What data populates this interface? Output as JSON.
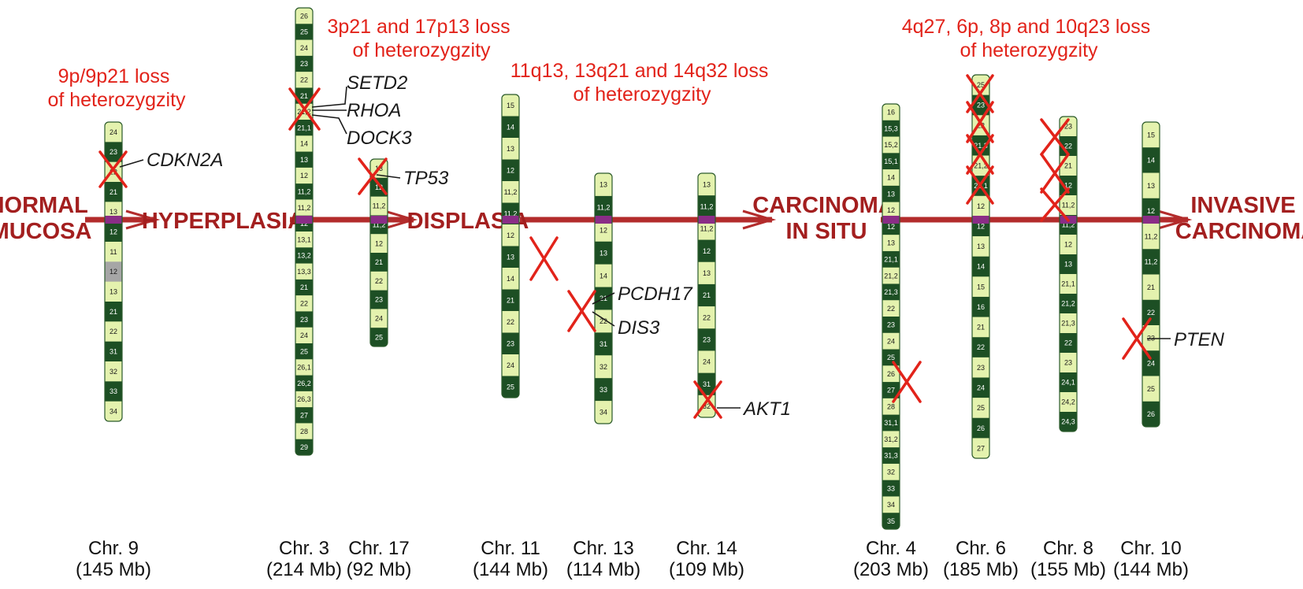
{
  "colors": {
    "light": "#e4f2ae",
    "dark": "#1d4f24",
    "grey": "#a6a6a6",
    "centromere": "#8a2d86",
    "arrow": "#b32c2c",
    "stage_text": "#a31f1f",
    "loss_text": "#e2231a",
    "cross": "#e2231a"
  },
  "stages": [
    {
      "id": "normal",
      "lines": [
        "NORMAL",
        "MUCOSA"
      ]
    },
    {
      "id": "hyperplasia",
      "lines": [
        "HYPERPLASIA"
      ]
    },
    {
      "id": "displasia",
      "lines": [
        "DISPLASIA"
      ]
    },
    {
      "id": "cis",
      "lines": [
        "CARCINOMA",
        "IN SITU"
      ]
    },
    {
      "id": "invasive",
      "lines": [
        "INVASIVE",
        "CARCINOMA"
      ]
    }
  ],
  "loss_labels": [
    {
      "id": "loss-9p",
      "lines": [
        "9p/9p21 loss",
        "of heterozygzity"
      ]
    },
    {
      "id": "loss-3p-17p",
      "lines": [
        "3p21 and 17p13 loss",
        "of heterozygzity"
      ]
    },
    {
      "id": "loss-11q-13q-14q",
      "lines": [
        "11q13, 13q21 and 14q32 loss",
        "of heterozygzity"
      ]
    },
    {
      "id": "loss-4q-6p-8p-10q",
      "lines": [
        "4q27, 6p, 8p and 10q23 loss",
        "of heterozygzity"
      ]
    }
  ],
  "genes": [
    "CDKN2A",
    "SETD2",
    "RHOA",
    "DOCK3",
    "TP53",
    "PCDH17",
    "DIS3",
    "AKT1",
    "PTEN"
  ],
  "chromosomes": [
    {
      "id": "chr9",
      "name": "Chr. 9",
      "size": "(145 Mb)",
      "bands": [
        [
          "24",
          "L"
        ],
        [
          "23",
          "D"
        ],
        [
          "22",
          "L"
        ],
        [
          "21",
          "D"
        ],
        [
          "13",
          "L"
        ],
        [
          "12",
          "D"
        ],
        [
          "11",
          "L"
        ],
        [
          "12",
          "G"
        ],
        [
          "13",
          "L"
        ],
        [
          "21",
          "D"
        ],
        [
          "22",
          "L"
        ],
        [
          "31",
          "D"
        ],
        [
          "32",
          "L"
        ],
        [
          "33",
          "D"
        ],
        [
          "34",
          "L"
        ]
      ]
    },
    {
      "id": "chr3",
      "name": "Chr. 3",
      "size": "(214 Mb)",
      "bands": [
        [
          "26",
          "L"
        ],
        [
          "25",
          "D"
        ],
        [
          "24",
          "L"
        ],
        [
          "23",
          "D"
        ],
        [
          "22",
          "L"
        ],
        [
          "21",
          "D"
        ],
        [
          "21,2",
          "L"
        ],
        [
          "21,1",
          "D"
        ],
        [
          "14",
          "L"
        ],
        [
          "13",
          "D"
        ],
        [
          "12",
          "L"
        ],
        [
          "11,2",
          "D"
        ],
        [
          "11,2",
          "L"
        ],
        [
          "12",
          "D"
        ],
        [
          "13,1",
          "L"
        ],
        [
          "13,2",
          "D"
        ],
        [
          "13,3",
          "L"
        ],
        [
          "21",
          "D"
        ],
        [
          "22",
          "L"
        ],
        [
          "23",
          "D"
        ],
        [
          "24",
          "L"
        ],
        [
          "25",
          "D"
        ],
        [
          "26,1",
          "L"
        ],
        [
          "26,2",
          "D"
        ],
        [
          "26,3",
          "L"
        ],
        [
          "27",
          "D"
        ],
        [
          "28",
          "L"
        ],
        [
          "29",
          "D"
        ]
      ]
    },
    {
      "id": "chr17",
      "name": "Chr. 17",
      "size": "(92 Mb)",
      "bands": [
        [
          "13",
          "L"
        ],
        [
          "12",
          "D"
        ],
        [
          "11,2",
          "L"
        ],
        [
          "11,2",
          "D"
        ],
        [
          "12",
          "L"
        ],
        [
          "21",
          "D"
        ],
        [
          "22",
          "L"
        ],
        [
          "23",
          "D"
        ],
        [
          "24",
          "L"
        ],
        [
          "25",
          "D"
        ]
      ]
    },
    {
      "id": "chr11",
      "name": "Chr. 11",
      "size": "(144 Mb)",
      "bands": [
        [
          "15",
          "L"
        ],
        [
          "14",
          "D"
        ],
        [
          "13",
          "L"
        ],
        [
          "12",
          "D"
        ],
        [
          "11,2",
          "L"
        ],
        [
          "11,2",
          "D"
        ],
        [
          "12",
          "L"
        ],
        [
          "13",
          "D"
        ],
        [
          "14",
          "L"
        ],
        [
          "21",
          "D"
        ],
        [
          "22",
          "L"
        ],
        [
          "23",
          "D"
        ],
        [
          "24",
          "L"
        ],
        [
          "25",
          "D"
        ]
      ]
    },
    {
      "id": "chr13",
      "name": "Chr. 13",
      "size": "(114 Mb)",
      "bands": [
        [
          "13",
          "L"
        ],
        [
          "11,2",
          "D"
        ],
        [
          "12",
          "L"
        ],
        [
          "13",
          "D"
        ],
        [
          "14",
          "L"
        ],
        [
          "21",
          "D"
        ],
        [
          "22",
          "L"
        ],
        [
          "31",
          "D"
        ],
        [
          "32",
          "L"
        ],
        [
          "33",
          "D"
        ],
        [
          "34",
          "L"
        ]
      ]
    },
    {
      "id": "chr14",
      "name": "Chr. 14",
      "size": "(109 Mb)",
      "bands": [
        [
          "13",
          "L"
        ],
        [
          "11,2",
          "D"
        ],
        [
          "11,2",
          "L"
        ],
        [
          "12",
          "D"
        ],
        [
          "13",
          "L"
        ],
        [
          "21",
          "D"
        ],
        [
          "22",
          "L"
        ],
        [
          "23",
          "D"
        ],
        [
          "24",
          "L"
        ],
        [
          "31",
          "D"
        ],
        [
          "32",
          "L"
        ]
      ]
    },
    {
      "id": "chr4",
      "name": "Chr. 4",
      "size": "(203 Mb)",
      "bands": [
        [
          "16",
          "L"
        ],
        [
          "15,3",
          "D"
        ],
        [
          "15,2",
          "L"
        ],
        [
          "15,1",
          "D"
        ],
        [
          "14",
          "L"
        ],
        [
          "13",
          "D"
        ],
        [
          "12",
          "L"
        ],
        [
          "12",
          "D"
        ],
        [
          "13",
          "L"
        ],
        [
          "21,1",
          "D"
        ],
        [
          "21,2",
          "L"
        ],
        [
          "21,3",
          "D"
        ],
        [
          "22",
          "L"
        ],
        [
          "23",
          "D"
        ],
        [
          "24",
          "L"
        ],
        [
          "25",
          "D"
        ],
        [
          "26",
          "L"
        ],
        [
          "27",
          "D"
        ],
        [
          "28",
          "L"
        ],
        [
          "31,1",
          "D"
        ],
        [
          "31,2",
          "L"
        ],
        [
          "31,3",
          "D"
        ],
        [
          "32",
          "L"
        ],
        [
          "33",
          "D"
        ],
        [
          "34",
          "L"
        ],
        [
          "35",
          "D"
        ]
      ]
    },
    {
      "id": "chr6",
      "name": "Chr. 6",
      "size": "(185 Mb)",
      "bands": [
        [
          "25",
          "L"
        ],
        [
          "23",
          "D"
        ],
        [
          "22",
          "L"
        ],
        [
          "21,3",
          "D"
        ],
        [
          "21,2",
          "L"
        ],
        [
          "21,1",
          "D"
        ],
        [
          "12",
          "L"
        ],
        [
          "12",
          "D"
        ],
        [
          "13",
          "L"
        ],
        [
          "14",
          "D"
        ],
        [
          "15",
          "L"
        ],
        [
          "16",
          "D"
        ],
        [
          "21",
          "L"
        ],
        [
          "22",
          "D"
        ],
        [
          "23",
          "L"
        ],
        [
          "24",
          "D"
        ],
        [
          "25",
          "L"
        ],
        [
          "26",
          "D"
        ],
        [
          "27",
          "L"
        ]
      ]
    },
    {
      "id": "chr8",
      "name": "Chr. 8",
      "size": "(155 Mb)",
      "bands": [
        [
          "23",
          "L"
        ],
        [
          "22",
          "D"
        ],
        [
          "21",
          "L"
        ],
        [
          "12",
          "D"
        ],
        [
          "11,2",
          "L"
        ],
        [
          "11,2",
          "D"
        ],
        [
          "12",
          "L"
        ],
        [
          "13",
          "D"
        ],
        [
          "21,1",
          "L"
        ],
        [
          "21,2",
          "D"
        ],
        [
          "21,3",
          "L"
        ],
        [
          "22",
          "D"
        ],
        [
          "23",
          "L"
        ],
        [
          "24,1",
          "D"
        ],
        [
          "24,2",
          "L"
        ],
        [
          "24,3",
          "D"
        ]
      ]
    },
    {
      "id": "chr10",
      "name": "Chr. 10",
      "size": "(144 Mb)",
      "bands": [
        [
          "15",
          "L"
        ],
        [
          "14",
          "D"
        ],
        [
          "13",
          "L"
        ],
        [
          "12",
          "D"
        ],
        [
          "11,2",
          "L"
        ],
        [
          "11,2",
          "D"
        ],
        [
          "21",
          "L"
        ],
        [
          "22",
          "D"
        ],
        [
          "23",
          "L"
        ],
        [
          "24",
          "D"
        ],
        [
          "25",
          "L"
        ],
        [
          "26",
          "D"
        ]
      ]
    }
  ]
}
